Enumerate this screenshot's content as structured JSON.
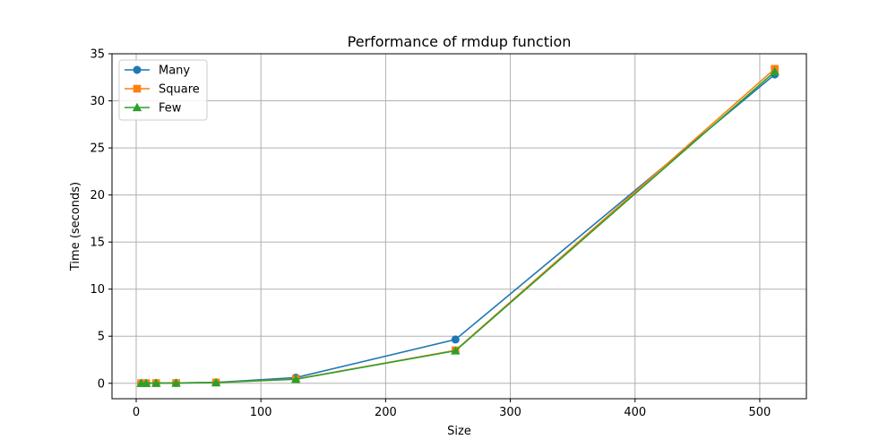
{
  "chart_data": {
    "type": "line",
    "title": "Performance of rmdup function",
    "xlabel": "Size",
    "ylabel": "Time (seconds)",
    "xlim": [
      -19.4,
      537.4
    ],
    "ylim": [
      -1.64,
      35
    ],
    "xticks": [
      0,
      100,
      200,
      300,
      400,
      500
    ],
    "yticks": [
      0,
      5,
      10,
      15,
      20,
      25,
      30,
      35
    ],
    "grid": true,
    "legend_position": "upper-left",
    "x": [
      4,
      8,
      16,
      32,
      64,
      128,
      256,
      512
    ],
    "series": [
      {
        "name": "Many",
        "color": "#1f77b4",
        "marker": "circle",
        "values": [
          0.01,
          0.01,
          0.02,
          0.03,
          0.09,
          0.6,
          4.65,
          32.8
        ]
      },
      {
        "name": "Square",
        "color": "#ff7f0e",
        "marker": "square",
        "values": [
          0.01,
          0.01,
          0.02,
          0.03,
          0.08,
          0.45,
          3.5,
          33.4
        ]
      },
      {
        "name": "Few",
        "color": "#2ca02c",
        "marker": "triangle",
        "values": [
          0.01,
          0.01,
          0.02,
          0.03,
          0.08,
          0.43,
          3.45,
          33.1
        ]
      }
    ]
  }
}
